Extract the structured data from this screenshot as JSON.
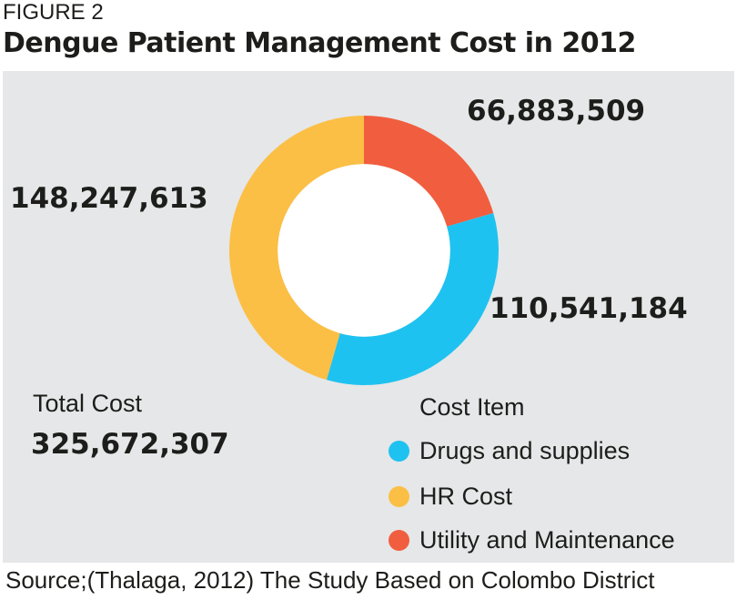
{
  "figure_label": "FIGURE 2",
  "colors": {
    "panel": "#e6e7e8",
    "hole": "#ffffff",
    "text": "#1d1d1b"
  },
  "chart_data": {
    "type": "pie",
    "title": "Dengue Patient Management Cost in 2012",
    "slices": [
      {
        "label": "Utility and Maintenance",
        "value": 66883509,
        "value_label": "66,883,509",
        "color": "#f15e3f"
      },
      {
        "label": "Drugs and supplies",
        "value": 110541184,
        "value_label": "110,541,184",
        "color": "#1ec2f0"
      },
      {
        "label": "HR Cost",
        "value": 148247613,
        "value_label": "148,247,613",
        "color": "#fbbf45"
      }
    ],
    "total_label": "Total Cost",
    "total_value": "325,672,307",
    "legend_title": "Cost Item",
    "legend": [
      {
        "label": "Drugs and supplies",
        "color": "#1ec2f0"
      },
      {
        "label": "HR Cost",
        "color": "#fbbf45"
      },
      {
        "label": "Utility and Maintenance",
        "color": "#f15e3f"
      }
    ],
    "legend_position": "bottom-right",
    "start_angle_deg": 0,
    "direction": "clockwise",
    "inner_radius_ratio": 0.64
  },
  "source": "Source;(Thalaga, 2012) The Study Based on Colombo District"
}
